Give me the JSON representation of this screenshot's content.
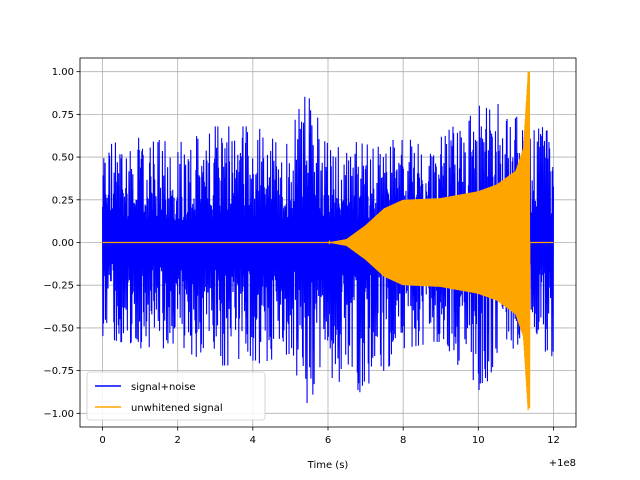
{
  "chart_data": {
    "type": "line",
    "title": "",
    "xlabel": "Time (s)",
    "ylabel": "",
    "x_offset_label": "+1e8",
    "xlim": [
      -0.6,
      12.6
    ],
    "ylim": [
      -1.08,
      1.08
    ],
    "x_ticks": [
      0,
      2,
      4,
      6,
      8,
      10,
      12
    ],
    "x_tick_labels": [
      "0",
      "2",
      "4",
      "6",
      "8",
      "10",
      "12"
    ],
    "y_ticks": [
      1.0,
      0.75,
      0.5,
      0.25,
      0.0,
      -0.25,
      -0.5,
      -0.75,
      -1.0
    ],
    "y_tick_labels": [
      "1.00",
      "0.75",
      "0.50",
      "0.25",
      "0.00",
      "−0.25",
      "−0.50",
      "−0.75",
      "−1.00"
    ],
    "grid": true,
    "legend_position": "lower-left",
    "series": [
      {
        "name": "signal+noise",
        "color": "#0000ff",
        "x_range": [
          0,
          12
        ],
        "envelope": {
          "x": [
            0,
            1,
            2,
            3,
            4,
            5,
            5.3,
            6,
            7,
            8,
            9,
            10,
            11,
            11.3,
            11.4,
            12
          ],
          "max": [
            0.62,
            0.62,
            0.58,
            0.68,
            0.68,
            0.6,
            0.95,
            0.65,
            0.6,
            0.6,
            0.62,
            0.8,
            0.82,
            0.6,
            0.65,
            0.7
          ],
          "min": [
            -0.55,
            -0.62,
            -0.62,
            -0.72,
            -0.72,
            -0.65,
            -0.98,
            -0.78,
            -0.9,
            -0.62,
            -0.58,
            -0.88,
            -0.62,
            -0.63,
            -0.55,
            -0.7
          ]
        }
      },
      {
        "name": "unwhitened signal",
        "color": "#ffa500",
        "x_range": [
          0,
          12
        ],
        "chirp_end": 11.33,
        "peak_min": -0.97,
        "peak_max": 1.0,
        "envelope": {
          "x": [
            0,
            6.0,
            6.5,
            7.0,
            7.5,
            8.0,
            9.0,
            10.0,
            10.5,
            11.0,
            11.2,
            11.33
          ],
          "amplitude": [
            0.0,
            0.0,
            0.02,
            0.1,
            0.2,
            0.25,
            0.26,
            0.3,
            0.34,
            0.42,
            0.55,
            1.0
          ]
        }
      }
    ]
  }
}
